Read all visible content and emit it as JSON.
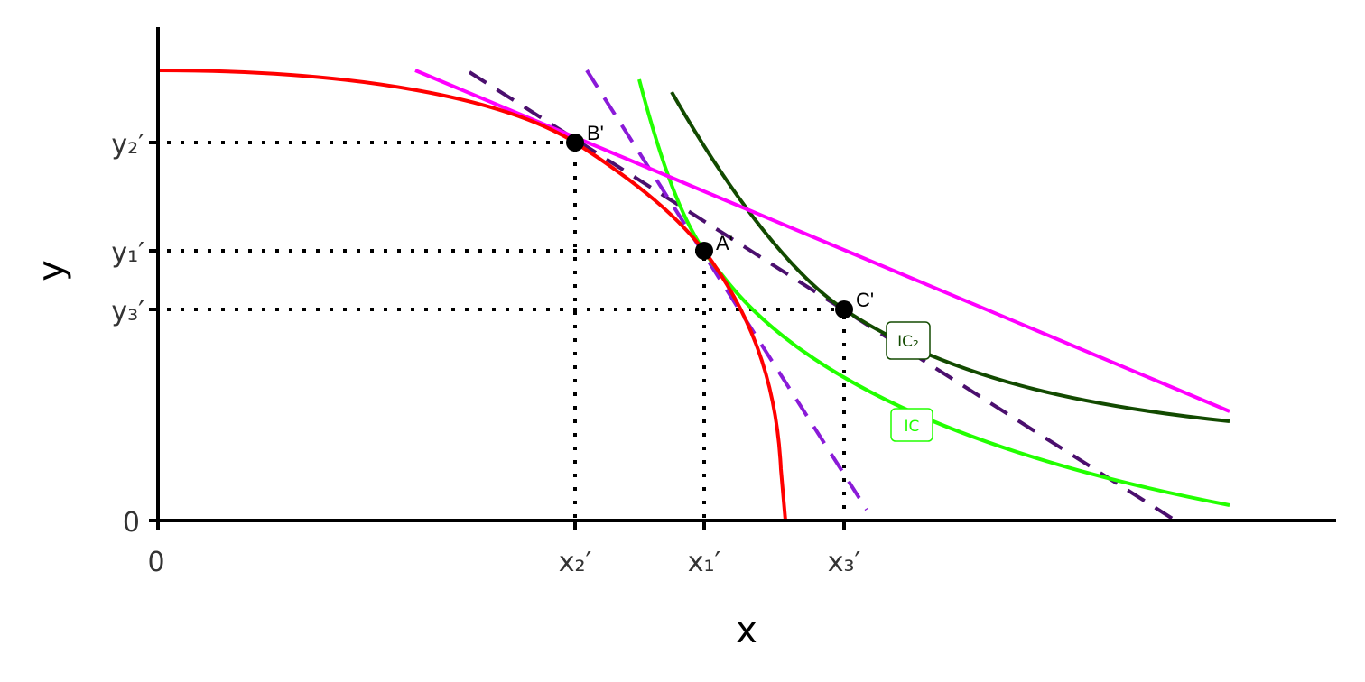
{
  "axes": {
    "x_label": "x",
    "y_label": "y",
    "origin_x": "0",
    "origin_y": "0"
  },
  "x_ticks": [
    "x₂′",
    "x₁′",
    "x₃′"
  ],
  "y_ticks": [
    "y₂′",
    "y₁′",
    "y₃′"
  ],
  "points": [
    "B'",
    "A'",
    "C'"
  ],
  "curve_labels": [
    "IC₂",
    "IC"
  ]
}
